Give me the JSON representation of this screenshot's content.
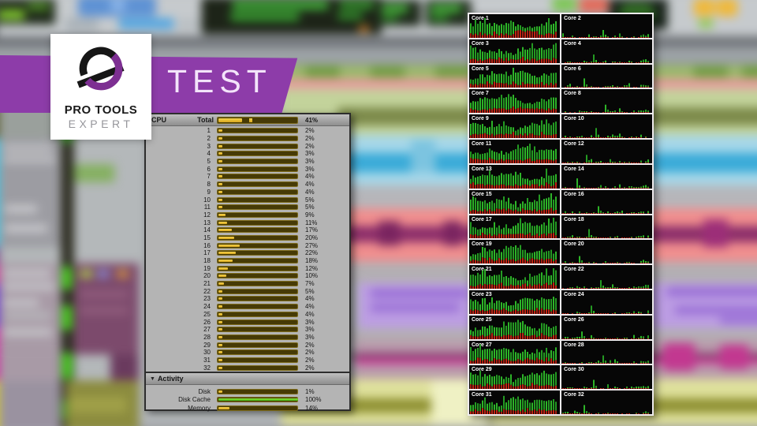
{
  "banner": {
    "label": "TEST",
    "color": "#8d3ca9"
  },
  "logo": {
    "line1": "PRO TOOLS",
    "line2": "EXPERT",
    "purple": "#7d2f92",
    "black": "#161616"
  },
  "system_usage": {
    "cpu_header": "CPU",
    "total_label": "Total",
    "total_pct": "41%",
    "total_fill": 30,
    "total_peak": 40,
    "bar_colors": {
      "track": "#463a06",
      "fill_top": "#f6d54e",
      "fill_bottom": "#d8a61e",
      "green_fill": "#5ecb1f"
    },
    "core_rows": [
      {
        "num": "1",
        "pct": 2,
        "text": "2%"
      },
      {
        "num": "2",
        "pct": 2,
        "text": "2%"
      },
      {
        "num": "3",
        "pct": 2,
        "text": "2%"
      },
      {
        "num": "4",
        "pct": 3,
        "text": "3%"
      },
      {
        "num": "5",
        "pct": 3,
        "text": "3%"
      },
      {
        "num": "6",
        "pct": 3,
        "text": "3%"
      },
      {
        "num": "7",
        "pct": 4,
        "text": "4%"
      },
      {
        "num": "8",
        "pct": 4,
        "text": "4%"
      },
      {
        "num": "9",
        "pct": 4,
        "text": "4%"
      },
      {
        "num": "10",
        "pct": 5,
        "text": "5%"
      },
      {
        "num": "11",
        "pct": 5,
        "text": "5%"
      },
      {
        "num": "12",
        "pct": 9,
        "text": "9%"
      },
      {
        "num": "13",
        "pct": 11,
        "text": "11%"
      },
      {
        "num": "14",
        "pct": 17,
        "text": "17%"
      },
      {
        "num": "15",
        "pct": 20,
        "text": "20%"
      },
      {
        "num": "16",
        "pct": 27,
        "text": "27%"
      },
      {
        "num": "17",
        "pct": 22,
        "text": "22%"
      },
      {
        "num": "18",
        "pct": 18,
        "text": "18%"
      },
      {
        "num": "19",
        "pct": 12,
        "text": "12%"
      },
      {
        "num": "20",
        "pct": 10,
        "text": "10%"
      },
      {
        "num": "21",
        "pct": 7,
        "text": "7%"
      },
      {
        "num": "22",
        "pct": 5,
        "text": "5%"
      },
      {
        "num": "23",
        "pct": 4,
        "text": "4%"
      },
      {
        "num": "24",
        "pct": 4,
        "text": "4%"
      },
      {
        "num": "25",
        "pct": 4,
        "text": "4%"
      },
      {
        "num": "26",
        "pct": 3,
        "text": "3%"
      },
      {
        "num": "27",
        "pct": 3,
        "text": "3%"
      },
      {
        "num": "28",
        "pct": 3,
        "text": "3%"
      },
      {
        "num": "29",
        "pct": 2,
        "text": "2%"
      },
      {
        "num": "30",
        "pct": 2,
        "text": "2%"
      },
      {
        "num": "31",
        "pct": 2,
        "text": "2%"
      },
      {
        "num": "32",
        "pct": 2,
        "text": "2%"
      }
    ],
    "activity_header": "Activity",
    "activity_rows": [
      {
        "label": "Disk",
        "pct": 1,
        "text": "1%",
        "style": "yellow"
      },
      {
        "label": "Disk Cache",
        "pct": 100,
        "text": "100%",
        "style": "green"
      },
      {
        "label": "Memory",
        "pct": 14,
        "text": "14%",
        "style": "yellow"
      }
    ]
  },
  "core_monitor": {
    "green": "#2db428",
    "green_dim": "#249a22",
    "red": "#c22414",
    "red_dim": "#a81f12",
    "items": [
      {
        "label": "Core 1",
        "profile": "busy"
      },
      {
        "label": "Core 2",
        "profile": "idle"
      },
      {
        "label": "Core 3",
        "profile": "busy"
      },
      {
        "label": "Core 4",
        "profile": "idle"
      },
      {
        "label": "Core 5",
        "profile": "busy"
      },
      {
        "label": "Core 6",
        "profile": "idle"
      },
      {
        "label": "Core 7",
        "profile": "busy"
      },
      {
        "label": "Core 8",
        "profile": "idle"
      },
      {
        "label": "Core 9",
        "profile": "busy"
      },
      {
        "label": "Core 10",
        "profile": "idle"
      },
      {
        "label": "Core 11",
        "profile": "busy"
      },
      {
        "label": "Core 12",
        "profile": "idle"
      },
      {
        "label": "Core 13",
        "profile": "busy"
      },
      {
        "label": "Core 14",
        "profile": "idle"
      },
      {
        "label": "Core 15",
        "profile": "busy"
      },
      {
        "label": "Core 16",
        "profile": "idle"
      },
      {
        "label": "Core 17",
        "profile": "busy"
      },
      {
        "label": "Core 18",
        "profile": "idle"
      },
      {
        "label": "Core 19",
        "profile": "busy"
      },
      {
        "label": "Core 20",
        "profile": "idle"
      },
      {
        "label": "Core 21",
        "profile": "busy"
      },
      {
        "label": "Core 22",
        "profile": "idle"
      },
      {
        "label": "Core 23",
        "profile": "busy"
      },
      {
        "label": "Core 24",
        "profile": "idle"
      },
      {
        "label": "Core 25",
        "profile": "busy"
      },
      {
        "label": "Core 26",
        "profile": "idle"
      },
      {
        "label": "Core 27",
        "profile": "busy"
      },
      {
        "label": "Core 28",
        "profile": "idle"
      },
      {
        "label": "Core 29",
        "profile": "busy"
      },
      {
        "label": "Core 30",
        "profile": "idle"
      },
      {
        "label": "Core 31",
        "profile": "busy"
      },
      {
        "label": "Core 32",
        "profile": "idle"
      }
    ]
  }
}
